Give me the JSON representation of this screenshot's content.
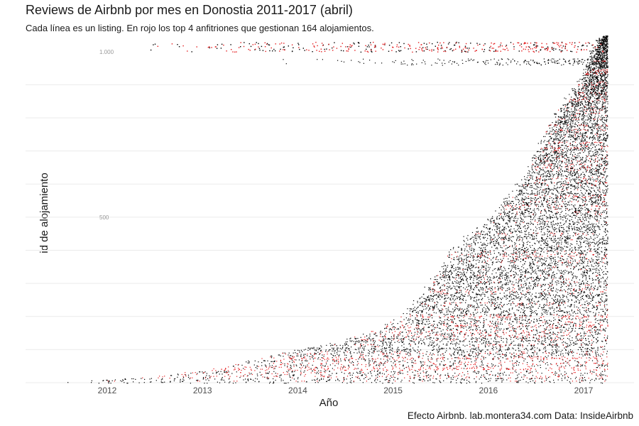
{
  "chart_data": {
    "type": "scatter",
    "title": "Reviews de Airbnb por mes en Donostia 2011-2017 (abril)",
    "subtitle": "Cada línea es un listing. En rojo los top 4 anfitriones que gestionan 164 alojamientos.",
    "xlabel": "Año",
    "ylabel": "id de alojamiento",
    "caption": "Efecto Airbnb. lab.montera34.com Data: InsideAirbnb",
    "x_ticks": [
      "2012",
      "2013",
      "2014",
      "2015",
      "2016",
      "2017"
    ],
    "y_tick_labels": [
      {
        "value": 500,
        "label": "500"
      },
      {
        "value": 1000,
        "label": "1.000"
      }
    ],
    "xlim": [
      2011.2,
      2017.5
    ],
    "ylim": [
      0,
      1110
    ],
    "grid": true,
    "series": [
      {
        "name": "",
        "color": "#000000"
      },
      {
        "name": "top 4 anfitriones",
        "color": "#e41a1c"
      }
    ],
    "data_envelope": {
      "first_review_date_by_id": [
        [
          0,
          2011.45
        ],
        [
          20,
          2012.5
        ],
        [
          40,
          2013.1
        ],
        [
          80,
          2013.7
        ],
        [
          120,
          2014.35
        ],
        [
          160,
          2014.85
        ],
        [
          220,
          2015.15
        ],
        [
          300,
          2015.4
        ],
        [
          430,
          2015.7
        ],
        [
          500,
          2016.05
        ],
        [
          650,
          2016.45
        ],
        [
          750,
          2016.6
        ],
        [
          860,
          2016.85
        ],
        [
          900,
          2016.95
        ],
        [
          990,
          2017.1
        ],
        [
          1050,
          2017.2
        ]
      ],
      "last_date": 2017.25
    }
  }
}
